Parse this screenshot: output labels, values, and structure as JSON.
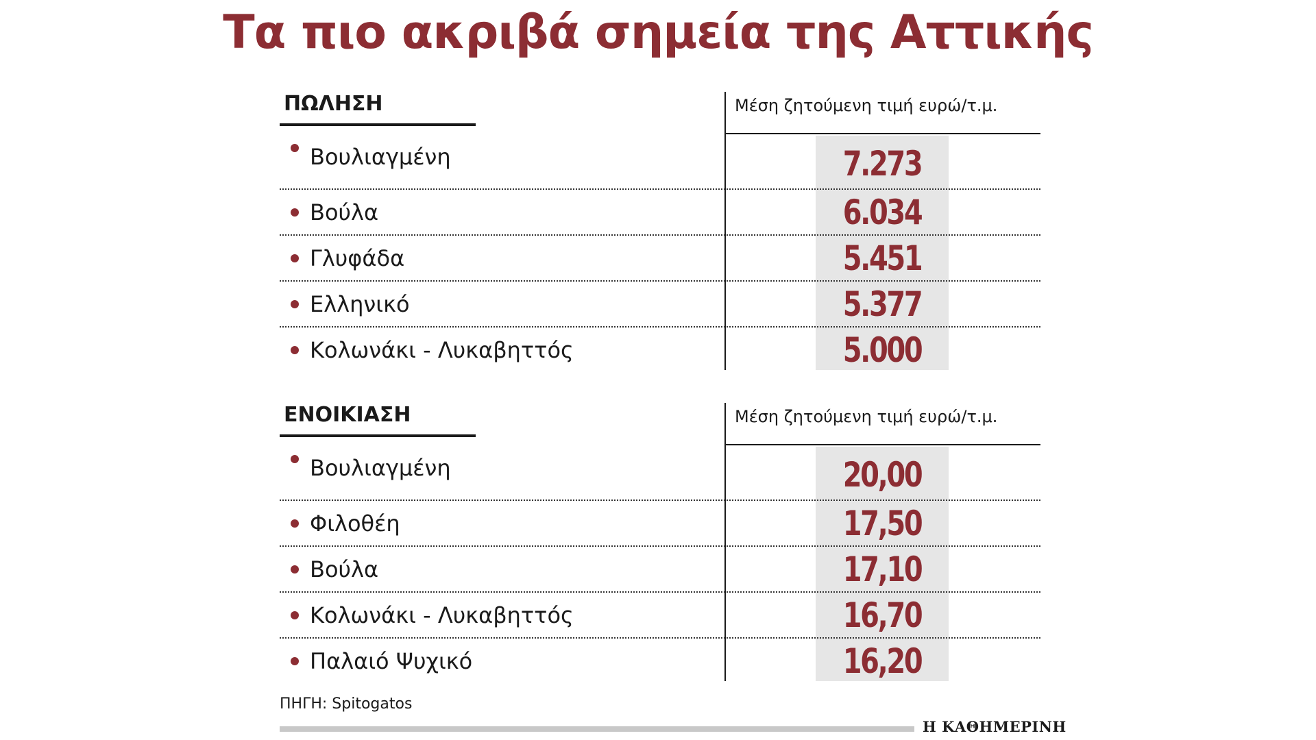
{
  "title": "Τα πιο ακριβά σημεία της Αττικής",
  "sections": [
    {
      "heading": "ΠΩΛΗΣΗ",
      "column_header": "Μέση ζητούμενη τιμή ευρώ/τ.μ.",
      "rows": [
        {
          "place": "Βουλιαγμένη",
          "value": "7.273"
        },
        {
          "place": "Βούλα",
          "value": "6.034"
        },
        {
          "place": "Γλυφάδα",
          "value": "5.451"
        },
        {
          "place": "Ελληνικό",
          "value": "5.377"
        },
        {
          "place": "Κολωνάκι - Λυκαβηττός",
          "value": "5.000"
        }
      ]
    },
    {
      "heading": "ΕΝΟΙΚΙΑΣΗ",
      "column_header": "Μέση ζητούμενη τιμή ευρώ/τ.μ.",
      "rows": [
        {
          "place": "Βουλιαγμένη",
          "value": "20,00"
        },
        {
          "place": "Φιλοθέη",
          "value": "17,50"
        },
        {
          "place": "Βούλα",
          "value": "17,10"
        },
        {
          "place": "Κολωνάκι - Λυκαβηττός",
          "value": "16,70"
        },
        {
          "place": "Παλαιό Ψυχικό",
          "value": "16,20"
        }
      ]
    }
  ],
  "source": "ΠΗΓΗ: Spitogatos",
  "publisher": "Η ΚΑΘΗΜΕΡΙΝΗ",
  "colors": {
    "accent": "#8c2d33",
    "value_background": "#e6e6e6",
    "text": "#1a1a1a"
  }
}
